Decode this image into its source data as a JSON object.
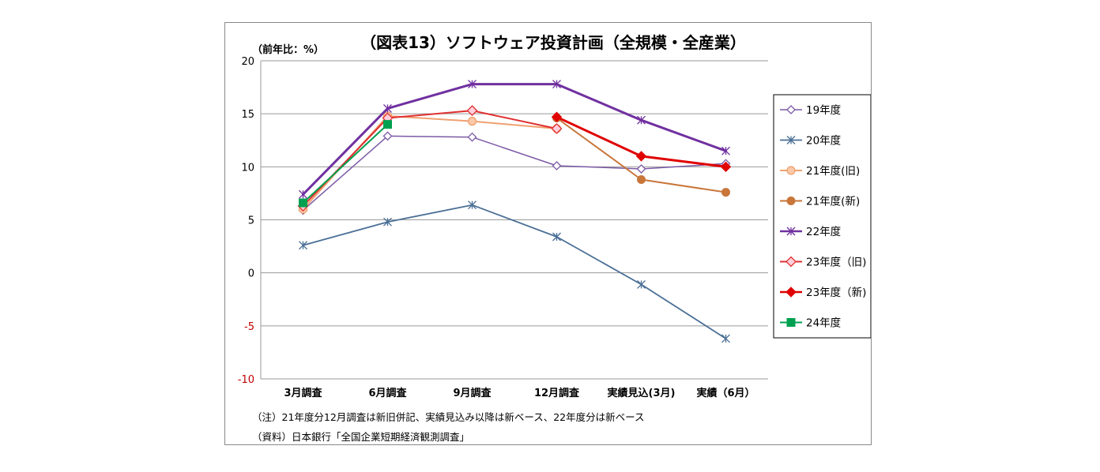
{
  "chart_data": {
    "type": "line",
    "title": "（図表13）ソフトウェア投資計画（全規模・全産業）",
    "ylabel": "（前年比：%）",
    "xlabel": "",
    "categories": [
      "3月調査",
      "6月調査",
      "9月調査",
      "12月調査",
      "実績見込(3月)",
      "実績（6月）"
    ],
    "ylim": [
      -10,
      20
    ],
    "yticks": [
      20,
      15,
      10,
      5,
      0,
      -5,
      -10
    ],
    "ytick_labels": [
      "20",
      "15",
      "10",
      "5",
      "0",
      "-5",
      "-10"
    ],
    "grid": true,
    "legend_position": "right",
    "series": [
      {
        "name": "19年度",
        "values": [
          5.9,
          12.9,
          12.8,
          10.1,
          9.8,
          10.3
        ],
        "color": "#7b5aa6",
        "marker": "diamond-open",
        "width": 1.5
      },
      {
        "name": "20年度",
        "values": [
          2.6,
          4.8,
          6.4,
          3.4,
          -1.1,
          -6.2
        ],
        "color": "#4a6f96",
        "marker": "asterisk",
        "width": 1.8
      },
      {
        "name": "21年度(旧)",
        "values": [
          6.0,
          14.8,
          14.3,
          13.6,
          null,
          null
        ],
        "color": "#f0a070",
        "marker": "circle-light",
        "width": 2
      },
      {
        "name": "21年度(新)",
        "values": [
          null,
          null,
          null,
          14.6,
          8.8,
          7.6
        ],
        "color": "#c8763a",
        "marker": "circle-filled",
        "width": 2
      },
      {
        "name": "22年度",
        "values": [
          7.4,
          15.5,
          17.8,
          17.8,
          14.4,
          11.5
        ],
        "color": "#7030a0",
        "marker": "asterisk",
        "width": 3
      },
      {
        "name": "23年度（旧)",
        "values": [
          6.3,
          14.6,
          15.3,
          13.6,
          null,
          null
        ],
        "color": "#e03030",
        "marker": "diamond-pink",
        "width": 2
      },
      {
        "name": "23年度（新)",
        "values": [
          null,
          null,
          null,
          14.7,
          11.0,
          10.0
        ],
        "color": "#e00000",
        "marker": "diamond-filled",
        "width": 3
      },
      {
        "name": "24年度",
        "values": [
          6.6,
          14.0,
          null,
          null,
          null,
          null
        ],
        "color": "#00a050",
        "marker": "square",
        "width": 2
      }
    ]
  },
  "notes": [
    "（注）21年度分12月調査は新旧併記、実績見込み以降は新ベース、22年度分は新ベース",
    "（資料）日本銀行「全国企業短期経済観測調査」"
  ]
}
